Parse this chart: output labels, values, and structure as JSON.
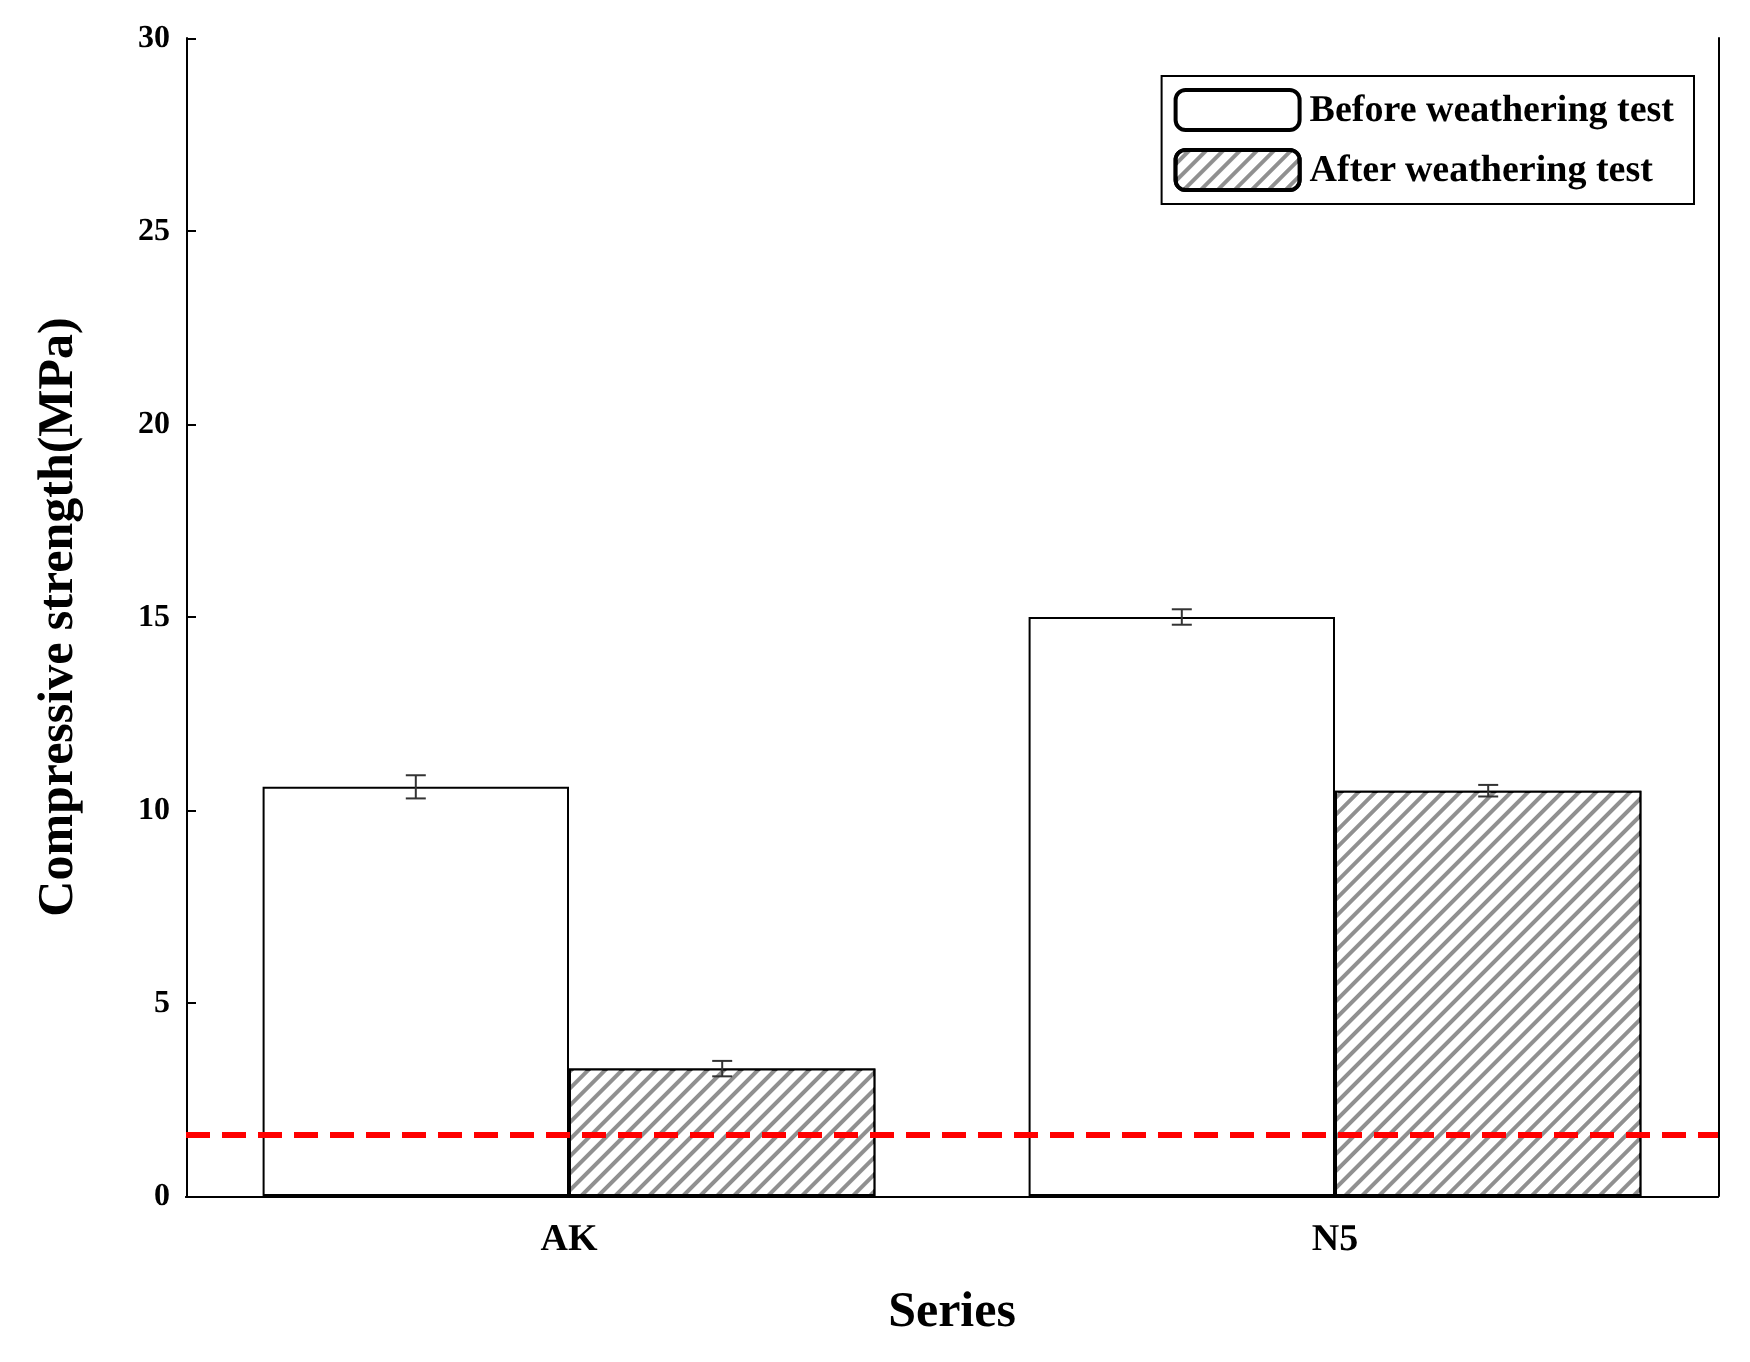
{
  "chart_data": {
    "type": "bar",
    "xlabel": "Series",
    "ylabel": "Compressive strength(MPa)",
    "categories": [
      "AK",
      "N5"
    ],
    "series": [
      {
        "name": "Before weathering test",
        "color": "#ffffff",
        "values": [
          10.6,
          15.0
        ],
        "errors": [
          0.3,
          0.2
        ]
      },
      {
        "name": "After weathering test",
        "color": "#909090",
        "values": [
          3.3,
          10.5
        ],
        "errors": [
          0.2,
          0.15
        ]
      }
    ],
    "ylim": [
      0,
      30
    ],
    "yticks": [
      0,
      5,
      10,
      15,
      20,
      25,
      30
    ],
    "grid": false,
    "legend": "top right",
    "ref_lines": [
      {
        "axis": "y",
        "value": 1.6,
        "color": "#ff0000",
        "line_style": "dashed"
      }
    ]
  }
}
